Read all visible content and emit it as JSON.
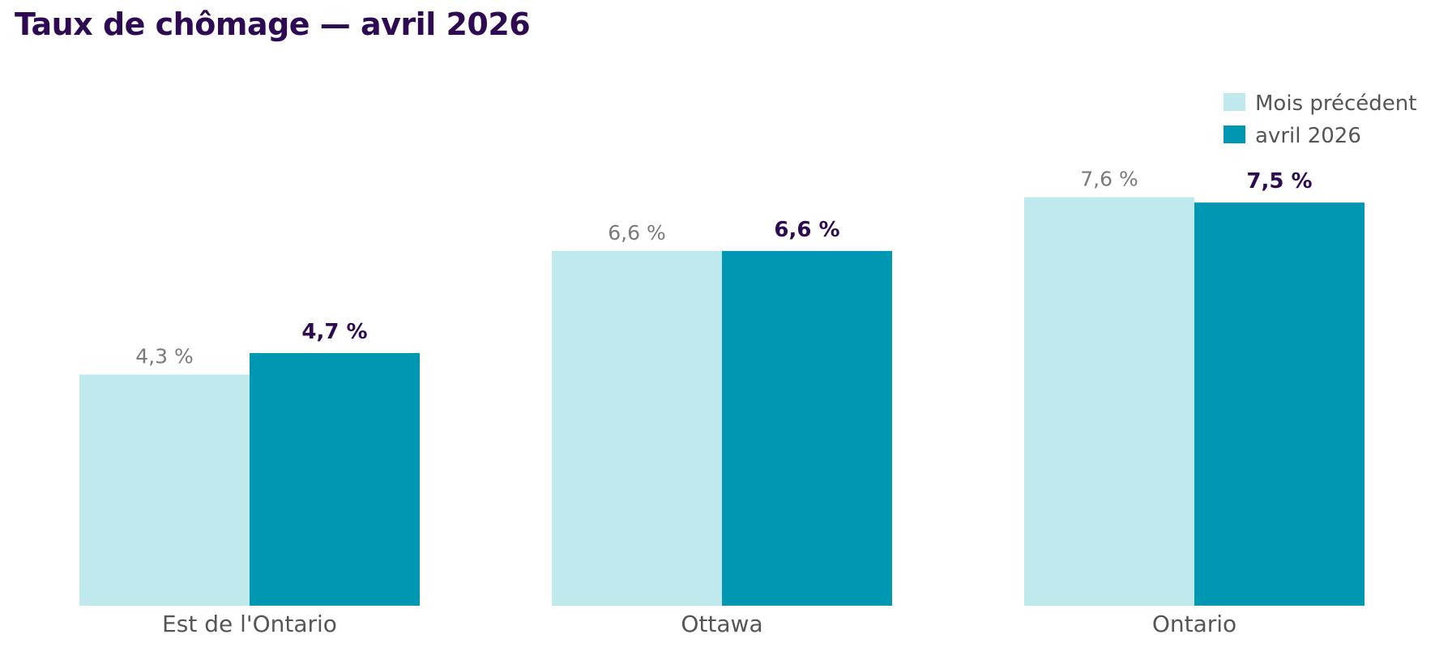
{
  "chart_data": {
    "type": "bar",
    "title": "Taux de chômage — avril 2026",
    "xlabel": "",
    "ylabel": "",
    "ylim": [
      0,
      8.15
    ],
    "grid": false,
    "legend_position": "top-right",
    "categories": [
      "Est de l'Ontario",
      "Ottawa",
      "Ontario"
    ],
    "series": [
      {
        "name": "Mois précédent",
        "values": [
          4.3,
          6.6,
          7.6
        ],
        "labels": [
          "4,3 %",
          "6,6 %",
          "7,6 %"
        ],
        "color": "#bfe9ed"
      },
      {
        "name": "avril 2026",
        "values": [
          4.7,
          6.6,
          7.5
        ],
        "labels": [
          "4,7 %",
          "6,6 %",
          "7,5 %"
        ],
        "color": "#0097b2"
      }
    ]
  }
}
